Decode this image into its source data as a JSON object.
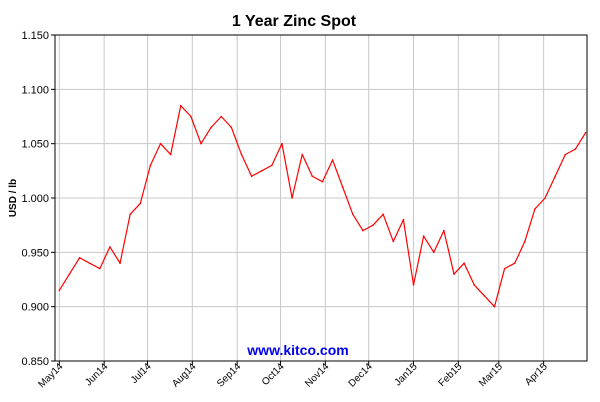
{
  "chart_data": {
    "type": "line",
    "title": "1 Year Zinc Spot",
    "xlabel": "",
    "ylabel": "USD / lb",
    "ylim": [
      0.85,
      1.15
    ],
    "yticks": [
      "1.150",
      "1.100",
      "1.050",
      "1.000",
      "0.950",
      "0.900",
      "0.850"
    ],
    "x_tick_labels": [
      "May14",
      "Jun14",
      "Jul14",
      "Aug14",
      "Sep14",
      "Oct14",
      "Nov14",
      "Dec14",
      "Jan15",
      "Feb15",
      "Mar15",
      "Apr15"
    ],
    "grid": true,
    "legend": "none",
    "watermark": "www.kitco.com",
    "series": [
      {
        "color": "#ff0000",
        "x": [
          "2014-05-01",
          "2014-05-08",
          "2014-05-15",
          "2014-05-22",
          "2014-05-29",
          "2014-06-05",
          "2014-06-12",
          "2014-06-19",
          "2014-06-26",
          "2014-07-03",
          "2014-07-10",
          "2014-07-17",
          "2014-07-24",
          "2014-07-31",
          "2014-08-07",
          "2014-08-14",
          "2014-08-21",
          "2014-08-28",
          "2014-09-04",
          "2014-09-11",
          "2014-09-18",
          "2014-09-25",
          "2014-10-02",
          "2014-10-09",
          "2014-10-16",
          "2014-10-23",
          "2014-10-30",
          "2014-11-06",
          "2014-11-13",
          "2014-11-20",
          "2014-11-27",
          "2014-12-04",
          "2014-12-11",
          "2014-12-18",
          "2014-12-25",
          "2015-01-01",
          "2015-01-08",
          "2015-01-15",
          "2015-01-22",
          "2015-01-29",
          "2015-02-05",
          "2015-02-12",
          "2015-02-19",
          "2015-02-26",
          "2015-03-05",
          "2015-03-12",
          "2015-03-19",
          "2015-03-26",
          "2015-04-02",
          "2015-04-09",
          "2015-04-16",
          "2015-04-23",
          "2015-04-30"
        ],
        "values": [
          0.915,
          0.93,
          0.945,
          0.94,
          0.935,
          0.955,
          0.94,
          0.985,
          0.995,
          1.03,
          1.05,
          1.04,
          1.085,
          1.075,
          1.05,
          1.065,
          1.075,
          1.065,
          1.04,
          1.02,
          1.025,
          1.03,
          1.05,
          1.0,
          1.04,
          1.02,
          1.015,
          1.035,
          1.01,
          0.985,
          0.97,
          0.975,
          0.985,
          0.96,
          0.98,
          0.92,
          0.965,
          0.95,
          0.97,
          0.93,
          0.94,
          0.92,
          0.91,
          0.9,
          0.935,
          0.94,
          0.96,
          0.99,
          1.0,
          1.02,
          1.04,
          1.045,
          1.06
        ]
      }
    ]
  }
}
